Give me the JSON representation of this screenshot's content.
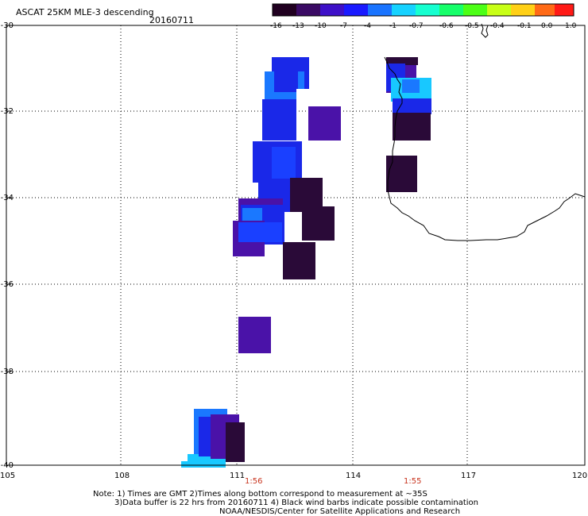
{
  "header": {
    "title": "ASCAT 25KM MLE-3 descending",
    "date": "20160711"
  },
  "colorbar": {
    "labels": [
      "-16",
      "-13",
      "-10",
      "-7",
      "-4",
      "-1",
      "-0.7",
      "-0.6",
      "-0.5",
      "-0.4",
      "-0.1",
      "0.0",
      "1.0"
    ],
    "colors": [
      "#200020",
      "#3a0a64",
      "#3e10c8",
      "#1a1aff",
      "#1a74ff",
      "#16d2ff",
      "#16ffd0",
      "#16ff6a",
      "#4cff16",
      "#c8ff16",
      "#ffd016",
      "#ff6a16",
      "#ff1a16"
    ]
  },
  "axes": {
    "lat_labels": [
      "-30",
      "-32",
      "-34",
      "-36",
      "-38",
      "-40"
    ],
    "lon_labels": [
      "105",
      "108",
      "111",
      "114",
      "117",
      "120"
    ]
  },
  "pass_times": [
    "1:56",
    "1:55"
  ],
  "notes": {
    "line1": "Note: 1) Times are GMT 2)Times along bottom correspond to measurement at ~35S",
    "line2": "3)Data buffer is 22 hrs from 20160711 4) Black wind barbs indicate possible contamination",
    "line3": "NOAA/NESDIS/Center for Satellite Applications and Research"
  },
  "colors": {
    "dark": "#2a0a38",
    "purple": "#4a12a8",
    "blue": "#1a28e8",
    "lightblue": "#1a78ff",
    "cyan": "#18c8ff"
  }
}
